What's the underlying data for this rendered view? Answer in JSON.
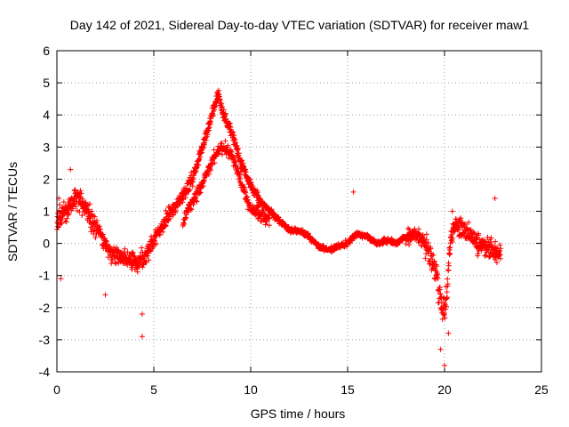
{
  "chart_data": {
    "type": "scatter",
    "title": "Day 142 of 2021, Sidereal Day-to-day VTEC variation (SDTVAR) for receiver maw1",
    "xlabel": "GPS time / hours",
    "ylabel": "SDTVAR / TECUs",
    "xlim": [
      0,
      25
    ],
    "ylim": [
      -4,
      6
    ],
    "xticks": [
      0,
      5,
      10,
      15,
      20,
      25
    ],
    "yticks": [
      -4,
      -3,
      -2,
      -1,
      0,
      1,
      2,
      3,
      4,
      5,
      6
    ],
    "grid": true,
    "marker": "+",
    "color": "#ff0000",
    "series": [
      {
        "name": "SDTVAR",
        "profile": [
          [
            0.0,
            0.7
          ],
          [
            0.3,
            0.9
          ],
          [
            0.6,
            1.1
          ],
          [
            1.0,
            1.5
          ],
          [
            1.3,
            1.3
          ],
          [
            1.6,
            0.9
          ],
          [
            2.0,
            0.5
          ],
          [
            2.4,
            0.1
          ],
          [
            2.8,
            -0.3
          ],
          [
            3.3,
            -0.4
          ],
          [
            3.8,
            -0.5
          ],
          [
            4.2,
            -0.6
          ],
          [
            4.5,
            -0.5
          ],
          [
            5.0,
            0.1
          ],
          [
            5.5,
            0.6
          ],
          [
            6.0,
            1.1
          ],
          [
            6.5,
            1.5
          ],
          [
            7.0,
            2.0
          ],
          [
            7.5,
            3.0
          ],
          [
            8.0,
            4.0
          ],
          [
            8.3,
            4.7
          ],
          [
            8.6,
            4.0
          ],
          [
            9.0,
            3.5
          ],
          [
            9.5,
            2.5
          ],
          [
            10.0,
            1.8
          ],
          [
            10.5,
            1.3
          ],
          [
            11.0,
            1.0
          ],
          [
            11.5,
            0.7
          ],
          [
            12.0,
            0.4
          ],
          [
            12.5,
            0.4
          ],
          [
            13.0,
            0.2
          ],
          [
            13.5,
            -0.1
          ],
          [
            14.0,
            -0.2
          ],
          [
            14.5,
            -0.1
          ],
          [
            15.0,
            0.0
          ],
          [
            15.5,
            0.3
          ],
          [
            16.0,
            0.2
          ],
          [
            16.5,
            0.0
          ],
          [
            17.0,
            0.1
          ],
          [
            17.5,
            0.0
          ],
          [
            18.0,
            0.2
          ],
          [
            18.5,
            0.3
          ],
          [
            19.0,
            0.0
          ],
          [
            19.3,
            -0.5
          ],
          [
            19.6,
            -1.0
          ],
          [
            19.9,
            -2.2
          ],
          [
            20.1,
            -1.8
          ],
          [
            20.3,
            0.2
          ],
          [
            20.6,
            0.6
          ],
          [
            21.0,
            0.4
          ],
          [
            21.5,
            0.1
          ],
          [
            22.0,
            -0.1
          ],
          [
            22.5,
            -0.2
          ],
          [
            22.9,
            -0.4
          ]
        ],
        "secondary_branch": [
          [
            6.5,
            0.7
          ],
          [
            7.0,
            1.3
          ],
          [
            7.5,
            1.8
          ],
          [
            8.0,
            2.6
          ],
          [
            8.5,
            3.0
          ],
          [
            9.0,
            2.8
          ],
          [
            9.5,
            1.9
          ],
          [
            10.0,
            1.1
          ],
          [
            10.5,
            0.9
          ],
          [
            11.0,
            0.7
          ]
        ],
        "outliers": [
          [
            0.1,
            1.4
          ],
          [
            0.2,
            -1.1
          ],
          [
            0.7,
            2.3
          ],
          [
            2.5,
            -1.6
          ],
          [
            4.4,
            -2.2
          ],
          [
            4.4,
            -2.9
          ],
          [
            15.3,
            1.6
          ],
          [
            19.8,
            -3.3
          ],
          [
            20.0,
            -3.8
          ],
          [
            20.2,
            -2.8
          ],
          [
            20.4,
            1.0
          ],
          [
            22.6,
            1.4
          ]
        ]
      }
    ]
  }
}
